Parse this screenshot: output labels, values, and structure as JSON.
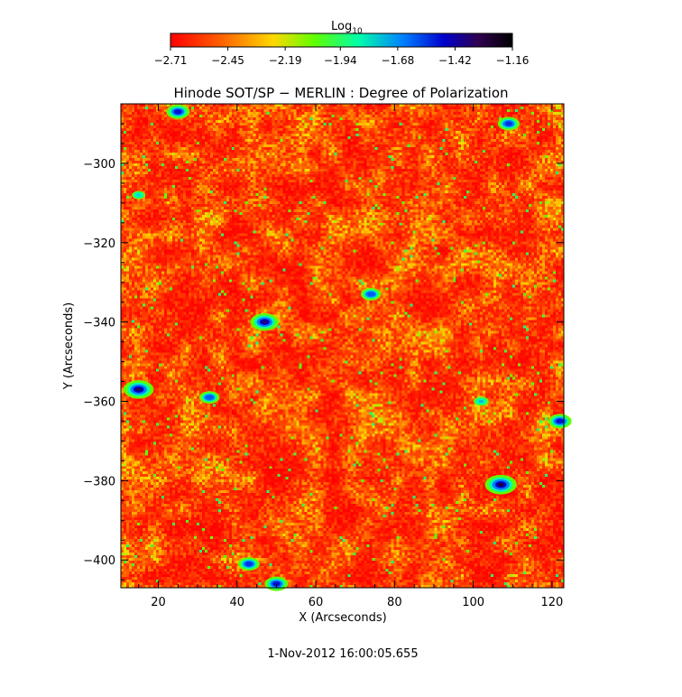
{
  "chart_data": {
    "type": "heatmap",
    "title": "Hinode SOT/SP − MERLIN : Degree of Polarization",
    "xlabel": "X (Arcseconds)",
    "ylabel": "Y (Arcseconds)",
    "xlim": [
      10.5,
      123
    ],
    "ylim": [
      -407,
      -285
    ],
    "x_ticks": [
      20,
      40,
      60,
      80,
      100,
      120
    ],
    "y_ticks": [
      -300,
      -320,
      -340,
      -360,
      -380,
      -400
    ],
    "x_tick_labels": [
      "20",
      "40",
      "60",
      "80",
      "100",
      "120"
    ],
    "y_tick_labels": [
      "−300",
      "−320",
      "−340",
      "−360",
      "−380",
      "−400"
    ],
    "colorbar": {
      "label_base": "Log",
      "label_sub": "10",
      "range": [
        -2.71,
        -1.16
      ],
      "ticks": [
        -2.71,
        -2.45,
        -2.19,
        -1.94,
        -1.68,
        -1.42,
        -1.16
      ],
      "tick_labels": [
        "−2.71",
        "−2.45",
        "−2.19",
        "−1.94",
        "−1.68",
        "−1.42",
        "−1.16"
      ],
      "colormap": "rainbow (red → yellow → green → cyan → blue → black)"
    },
    "values_note": "log10 degree of polarization; mostly −2.7 to −2.3, isolated patches near −1.2",
    "high_regions": [
      {
        "x": 15,
        "y": -357,
        "value": -1.3
      },
      {
        "x": 47,
        "y": -340,
        "value": -1.35
      },
      {
        "x": 107,
        "y": -381,
        "value": -1.25
      },
      {
        "x": 25,
        "y": -287,
        "value": -1.5
      },
      {
        "x": 74,
        "y": -333,
        "value": -1.6
      },
      {
        "x": 109,
        "y": -290,
        "value": -1.55
      },
      {
        "x": 33,
        "y": -359,
        "value": -1.6
      },
      {
        "x": 122,
        "y": -365,
        "value": -1.5
      },
      {
        "x": 43,
        "y": -401,
        "value": -1.55
      },
      {
        "x": 50,
        "y": -406,
        "value": -1.5
      },
      {
        "x": 102,
        "y": -360,
        "value": -1.75
      },
      {
        "x": 15,
        "y": -308,
        "value": -1.8
      }
    ]
  },
  "footer": {
    "timestamp": "1-Nov-2012 16:00:05.655"
  }
}
